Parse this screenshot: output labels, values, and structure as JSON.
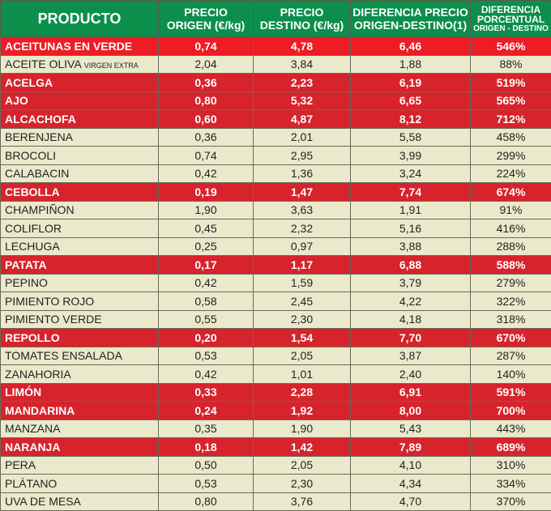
{
  "header": {
    "producto": "PRODUCTO",
    "origen_1": "PRECIO",
    "origen_2": "ORIGEN (€/kg)",
    "destino_1": "PRECIO",
    "destino_2": "DESTINO (€/kg)",
    "dif_1": "DIFERENCIA PRECIO",
    "dif_2": "ORIGEN-DESTINO(1)",
    "pct_1": "DIFERENCIA",
    "pct_2": "PORCENTUAL",
    "pct_3": "ORIGEN - DESTINO"
  },
  "colors": {
    "header": "#0b8f4b",
    "highlight": "#d7232c",
    "row": "#ebe9cb"
  },
  "rows": [
    {
      "name": "ACEITUNAS EN VERDE",
      "sub": "",
      "o": "0,74",
      "d": "4,78",
      "dif": "6,46",
      "pct": "546%",
      "hl": true
    },
    {
      "name": "ACEITE OLIVA",
      "sub": "VIRGEN EXTRA",
      "o": "2,04",
      "d": "3,84",
      "dif": "1,88",
      "pct": "88%",
      "hl": false
    },
    {
      "name": "ACELGA",
      "sub": "",
      "o": "0,36",
      "d": "2,23",
      "dif": "6,19",
      "pct": "519%",
      "hl": true
    },
    {
      "name": "AJO",
      "sub": "",
      "o": "0,80",
      "d": "5,32",
      "dif": "6,65",
      "pct": "565%",
      "hl": true
    },
    {
      "name": "ALCACHOFA",
      "sub": "",
      "o": "0,60",
      "d": "4,87",
      "dif": "8,12",
      "pct": "712%",
      "hl": true
    },
    {
      "name": "BERENJENA",
      "sub": "",
      "o": "0,36",
      "d": "2,01",
      "dif": "5,58",
      "pct": "458%",
      "hl": false
    },
    {
      "name": "BROCOLI",
      "sub": "",
      "o": "0,74",
      "d": "2,95",
      "dif": "3,99",
      "pct": "299%",
      "hl": false
    },
    {
      "name": "CALABACIN",
      "sub": "",
      "o": "0,42",
      "d": "1,36",
      "dif": "3,24",
      "pct": "224%",
      "hl": false
    },
    {
      "name": "CEBOLLA",
      "sub": "",
      "o": "0,19",
      "d": "1,47",
      "dif": "7,74",
      "pct": "674%",
      "hl": true
    },
    {
      "name": "CHAMPIÑON",
      "sub": "",
      "o": "1,90",
      "d": "3,63",
      "dif": "1,91",
      "pct": "91%",
      "hl": false
    },
    {
      "name": "COLIFLOR",
      "sub": "",
      "o": "0,45",
      "d": "2,32",
      "dif": "5,16",
      "pct": "416%",
      "hl": false
    },
    {
      "name": "LECHUGA",
      "sub": "",
      "o": "0,25",
      "d": "0,97",
      "dif": "3,88",
      "pct": "288%",
      "hl": false
    },
    {
      "name": "PATATA",
      "sub": "",
      "o": "0,17",
      "d": "1,17",
      "dif": "6,88",
      "pct": "588%",
      "hl": true
    },
    {
      "name": "PEPINO",
      "sub": "",
      "o": "0,42",
      "d": "1,59",
      "dif": "3,79",
      "pct": "279%",
      "hl": false
    },
    {
      "name": "PIMIENTO ROJO",
      "sub": "",
      "o": "0,58",
      "d": "2,45",
      "dif": "4,22",
      "pct": "322%",
      "hl": false
    },
    {
      "name": "PIMIENTO VERDE",
      "sub": "",
      "o": "0,55",
      "d": "2,30",
      "dif": "4,18",
      "pct": "318%",
      "hl": false
    },
    {
      "name": "REPOLLO",
      "sub": "",
      "o": "0,20",
      "d": "1,54",
      "dif": "7,70",
      "pct": "670%",
      "hl": true
    },
    {
      "name": "TOMATES ENSALADA",
      "sub": "",
      "o": "0,53",
      "d": "2,05",
      "dif": "3,87",
      "pct": "287%",
      "hl": false
    },
    {
      "name": "ZANAHORIA",
      "sub": "",
      "o": "0,42",
      "d": "1,01",
      "dif": "2,40",
      "pct": "140%",
      "hl": false
    },
    {
      "name": "LIMÓN",
      "sub": "",
      "o": "0,33",
      "d": "2,28",
      "dif": "6,91",
      "pct": "591%",
      "hl": true
    },
    {
      "name": "MANDARINA",
      "sub": "",
      "o": "0,24",
      "d": "1,92",
      "dif": "8,00",
      "pct": "700%",
      "hl": true
    },
    {
      "name": "MANZANA",
      "sub": "",
      "o": "0,35",
      "d": "1,90",
      "dif": "5,43",
      "pct": "443%",
      "hl": false
    },
    {
      "name": "NARANJA",
      "sub": "",
      "o": "0,18",
      "d": "1,42",
      "dif": "7,89",
      "pct": "689%",
      "hl": true
    },
    {
      "name": "PERA",
      "sub": "",
      "o": "0,50",
      "d": "2,05",
      "dif": "4,10",
      "pct": "310%",
      "hl": false
    },
    {
      "name": "PLÁTANO",
      "sub": "",
      "o": "0,53",
      "d": "2,30",
      "dif": "4,34",
      "pct": "334%",
      "hl": false
    },
    {
      "name": "UVA DE MESA",
      "sub": "",
      "o": "0,80",
      "d": "3,76",
      "dif": "4,70",
      "pct": "370%",
      "hl": false
    }
  ]
}
